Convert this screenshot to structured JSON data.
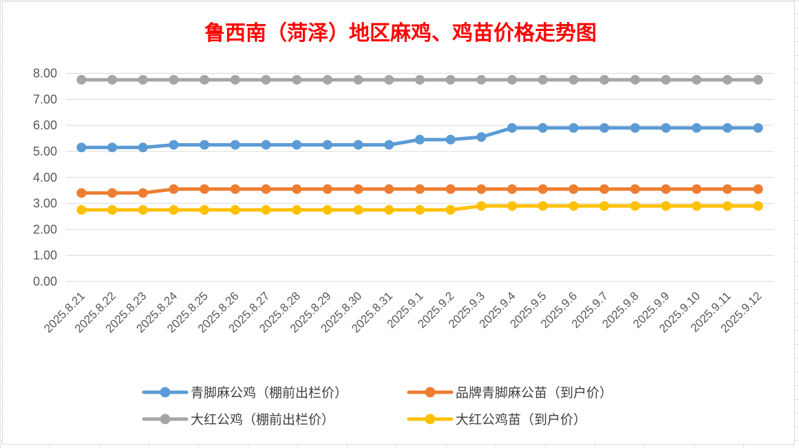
{
  "chart_data": {
    "type": "line",
    "title": "鲁西南（菏泽）地区麻鸡、鸡苗价格走势图",
    "xlabel": "",
    "ylabel": "",
    "ylim": [
      0,
      8
    ],
    "yticks": [
      "0.00",
      "1.00",
      "2.00",
      "3.00",
      "4.00",
      "5.00",
      "6.00",
      "7.00",
      "8.00"
    ],
    "grid": true,
    "legend_position": "bottom",
    "categories": [
      "2025.8.21",
      "2025.8.22",
      "2025.8.23",
      "2025.8.24",
      "2025.8.25",
      "2025.8.26",
      "2025.8.27",
      "2025.8.28",
      "2025.8.29",
      "2025.8.30",
      "2025.8.31",
      "2025.9.1",
      "2025.9.2",
      "2025.9.3",
      "2025.9.4",
      "2025.9.5",
      "2025.9.6",
      "2025.9.7",
      "2025.9.8",
      "2025.9.9",
      "2025.9.10",
      "2025.9.11",
      "2025.9.12"
    ],
    "series": [
      {
        "name": "青脚麻公鸡（棚前出栏价）",
        "color": "#5b9bd5",
        "values": [
          5.15,
          5.15,
          5.15,
          5.25,
          5.25,
          5.25,
          5.25,
          5.25,
          5.25,
          5.25,
          5.25,
          5.45,
          5.45,
          5.55,
          5.9,
          5.9,
          5.9,
          5.9,
          5.9,
          5.9,
          5.9,
          5.9,
          5.9
        ]
      },
      {
        "name": "品牌青脚麻公苗（到户价）",
        "color": "#ed7d31",
        "values": [
          3.4,
          3.4,
          3.4,
          3.55,
          3.55,
          3.55,
          3.55,
          3.55,
          3.55,
          3.55,
          3.55,
          3.55,
          3.55,
          3.55,
          3.55,
          3.55,
          3.55,
          3.55,
          3.55,
          3.55,
          3.55,
          3.55,
          3.55
        ]
      },
      {
        "name": "大红公鸡（棚前出栏价）",
        "color": "#a5a5a5",
        "values": [
          7.75,
          7.75,
          7.75,
          7.75,
          7.75,
          7.75,
          7.75,
          7.75,
          7.75,
          7.75,
          7.75,
          7.75,
          7.75,
          7.75,
          7.75,
          7.75,
          7.75,
          7.75,
          7.75,
          7.75,
          7.75,
          7.75,
          7.75
        ]
      },
      {
        "name": "大红公鸡苗（到户价）",
        "color": "#ffc000",
        "values": [
          2.75,
          2.75,
          2.75,
          2.75,
          2.75,
          2.75,
          2.75,
          2.75,
          2.75,
          2.75,
          2.75,
          2.75,
          2.75,
          2.9,
          2.9,
          2.9,
          2.9,
          2.9,
          2.9,
          2.9,
          2.9,
          2.9,
          2.9
        ]
      }
    ]
  }
}
